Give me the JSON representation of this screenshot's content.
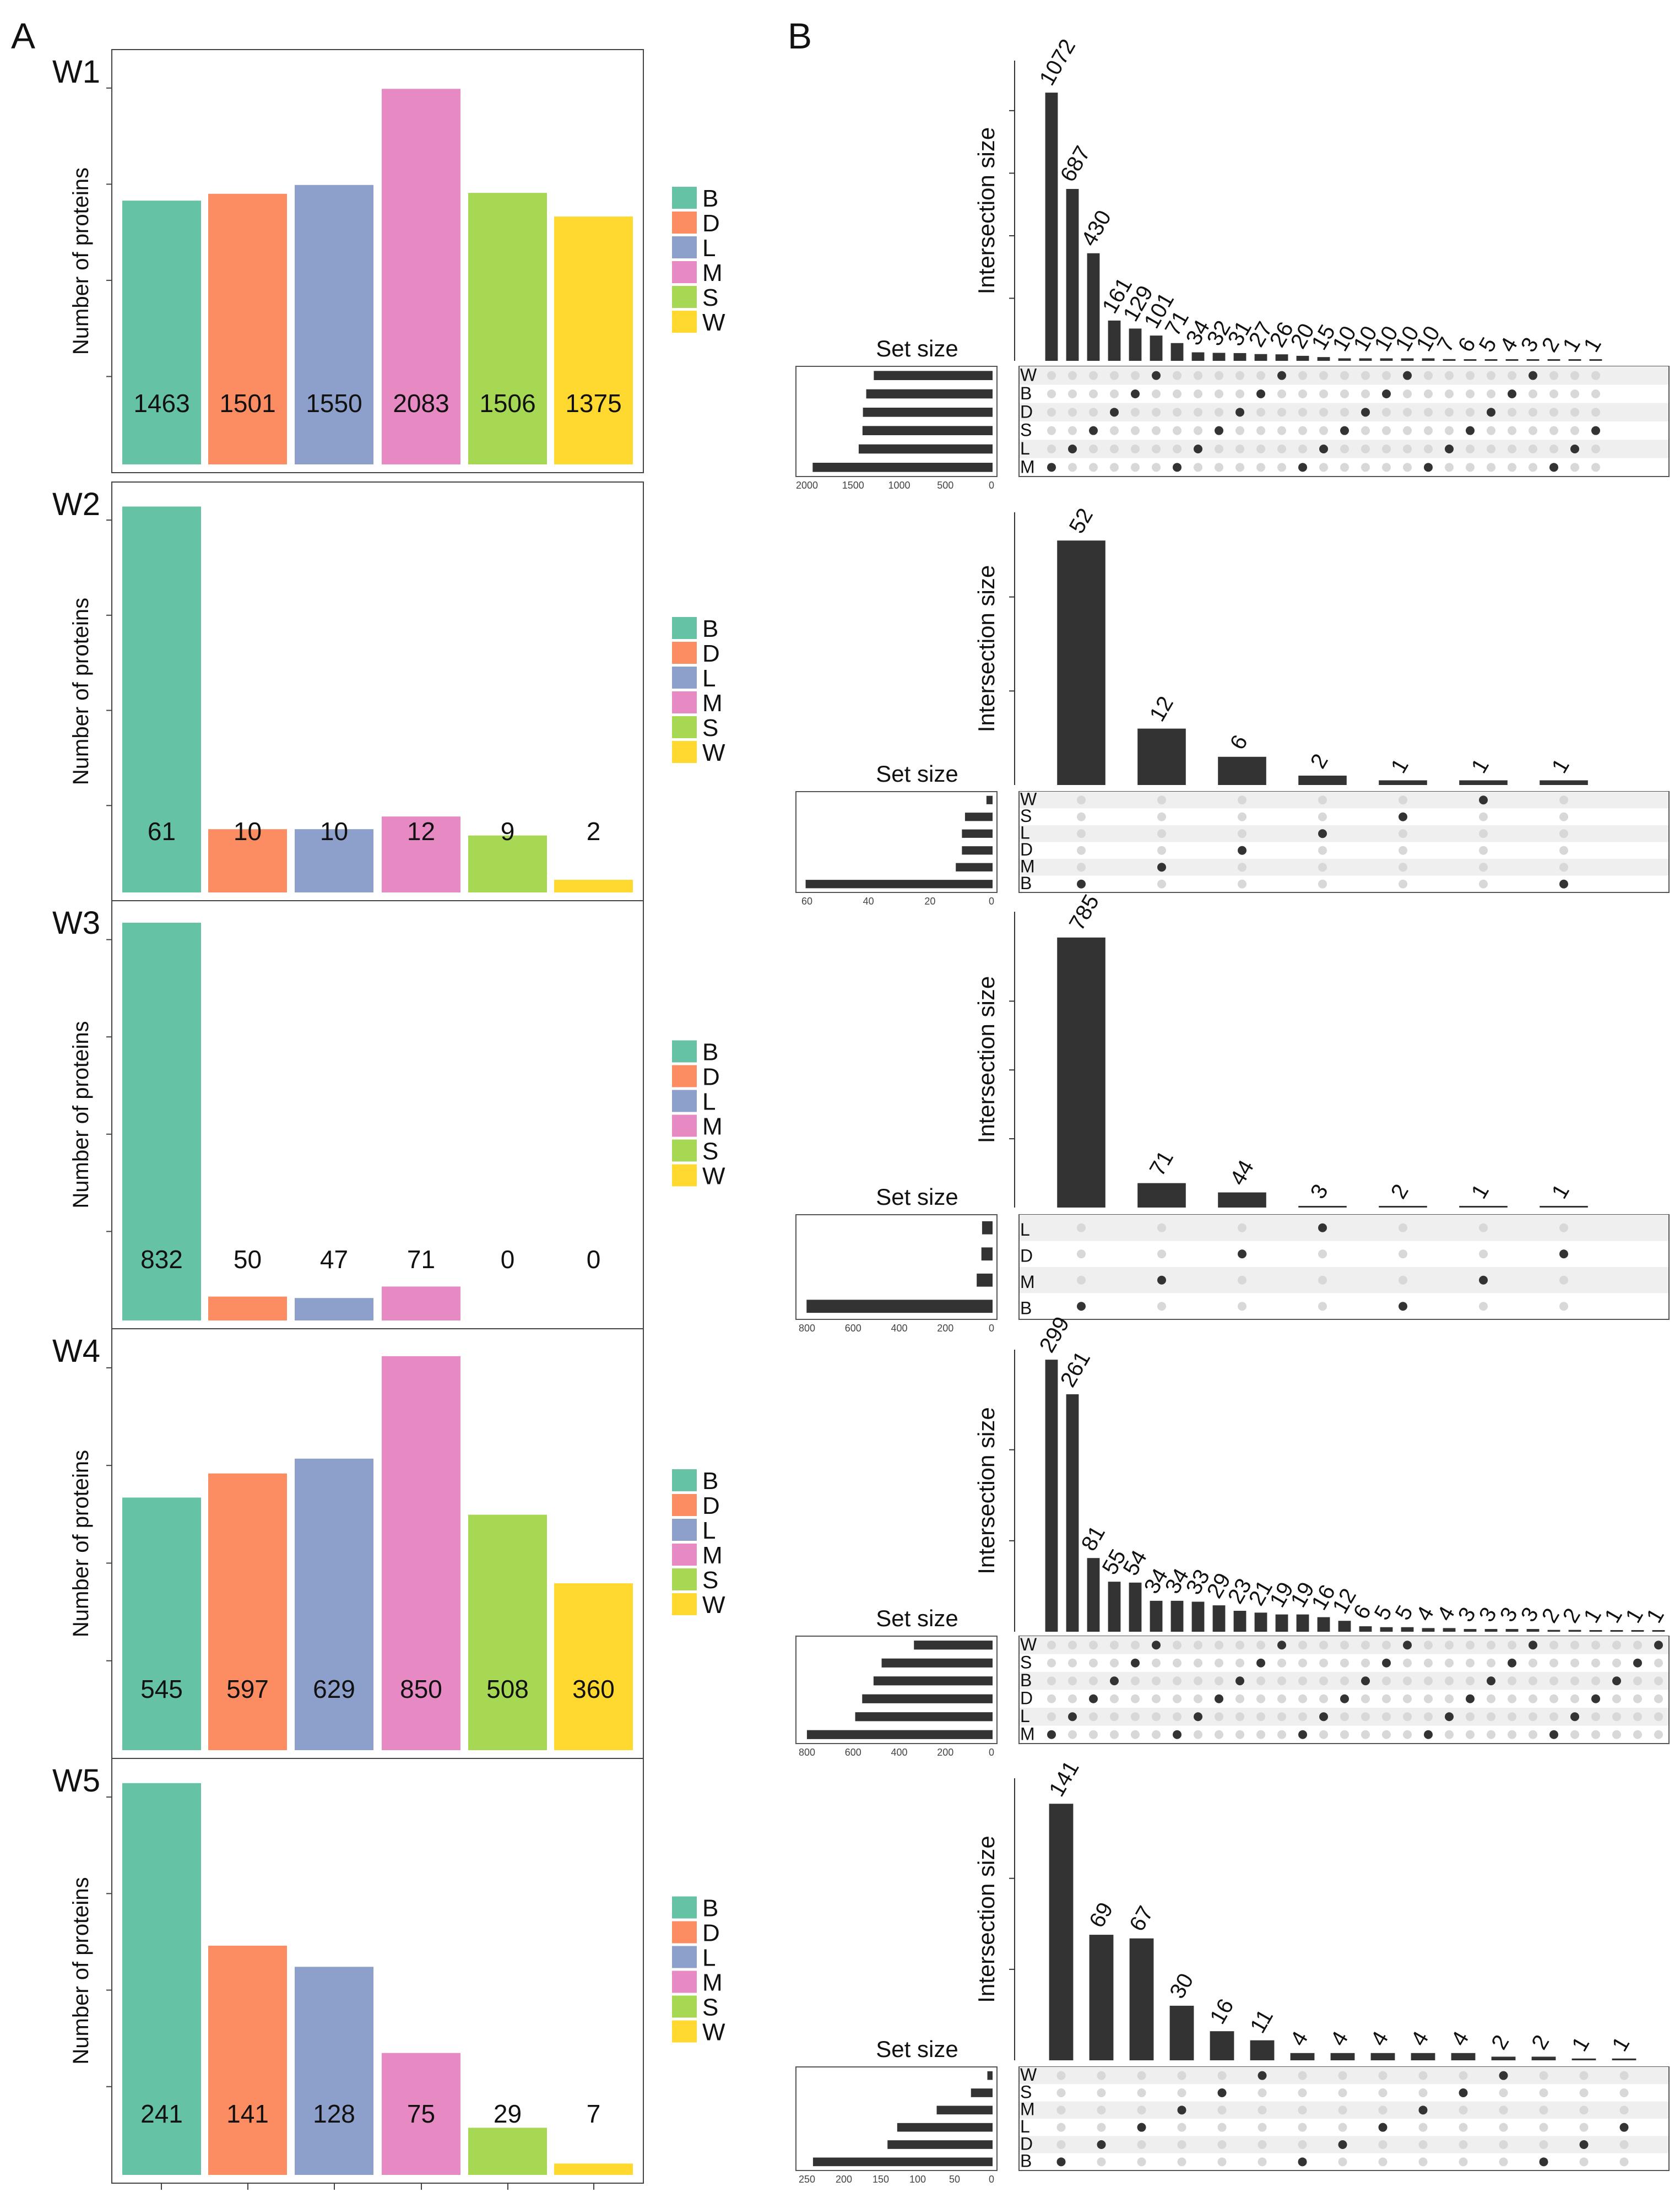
{
  "panel_labels": {
    "A": "A",
    "B": "B"
  },
  "axis_labels": {
    "y_bar": "Number of proteins",
    "upset_y": "Intersection size",
    "set_size": "Set size"
  },
  "colors": {
    "B": "#66C2A5",
    "D": "#FC8D62",
    "L": "#8DA0CB",
    "M": "#E78AC3",
    "S": "#A6D854",
    "W": "#FFD92F",
    "upset_bar": "#333333"
  },
  "chart_data": [
    {
      "type": "bar",
      "title": "W1",
      "categories": [
        "B",
        "D",
        "L",
        "M",
        "S",
        "W"
      ],
      "values": [
        1463,
        1501,
        1550,
        2083,
        1506,
        1375
      ],
      "ylim": [
        0,
        2200
      ],
      "legend": [
        "B",
        "D",
        "L",
        "M",
        "S",
        "W"
      ],
      "ylabel": "Number of proteins"
    },
    {
      "type": "bar",
      "title": "W2",
      "categories": [
        "B",
        "D",
        "L",
        "M",
        "S",
        "W"
      ],
      "values": [
        61,
        10,
        10,
        12,
        9,
        2
      ],
      "ylim": [
        0,
        62
      ],
      "legend": [
        "B",
        "D",
        "L",
        "M",
        "S",
        "W"
      ],
      "ylabel": "Number of proteins"
    },
    {
      "type": "bar",
      "title": "W3",
      "categories": [
        "B",
        "D",
        "L",
        "M",
        "S",
        "W"
      ],
      "values": [
        832,
        50,
        47,
        71,
        0,
        0
      ],
      "ylim": [
        0,
        840
      ],
      "legend": [
        "B",
        "D",
        "L",
        "M",
        "S",
        "W"
      ],
      "ylabel": "Number of proteins"
    },
    {
      "type": "bar",
      "title": "W4",
      "categories": [
        "B",
        "D",
        "L",
        "M",
        "S",
        "W"
      ],
      "values": [
        545,
        597,
        629,
        850,
        508,
        360
      ],
      "ylim": [
        0,
        870
      ],
      "legend": [
        "B",
        "D",
        "L",
        "M",
        "S",
        "W"
      ],
      "ylabel": "Number of proteins"
    },
    {
      "type": "bar",
      "title": "W5",
      "categories": [
        "B",
        "D",
        "L",
        "M",
        "S",
        "W"
      ],
      "values": [
        241,
        141,
        128,
        75,
        29,
        7
      ],
      "ylim": [
        0,
        245
      ],
      "legend": [
        "B",
        "D",
        "L",
        "M",
        "S",
        "W"
      ],
      "ylabel": "Number of proteins"
    },
    {
      "type": "upset",
      "title": "W1",
      "sets": [
        "W",
        "B",
        "D",
        "S",
        "L",
        "M"
      ],
      "set_sizes": [
        1375,
        1463,
        1501,
        1506,
        1550,
        2083
      ],
      "set_size_ticks": [
        "2000",
        "1500",
        "1000",
        "500",
        "0"
      ],
      "set_size_max": 2200,
      "intersections": [
        1072,
        687,
        430,
        161,
        129,
        101,
        71,
        34,
        32,
        31,
        27,
        26,
        20,
        15,
        10,
        10,
        10,
        10,
        10,
        7,
        6,
        5,
        4,
        3,
        2,
        1,
        1
      ],
      "ymax": 1200,
      "yticks": [
        250,
        500,
        750,
        1000
      ],
      "xlabel": "Set size",
      "ylabel": "Intersection size"
    },
    {
      "type": "upset",
      "title": "W2",
      "sets": [
        "W",
        "S",
        "L",
        "D",
        "M",
        "B"
      ],
      "set_sizes": [
        2,
        9,
        10,
        10,
        12,
        61
      ],
      "set_size_ticks": [
        "60",
        "40",
        "20",
        "0"
      ],
      "set_size_max": 62,
      "intersections": [
        52,
        12,
        6,
        2,
        1,
        1,
        1
      ],
      "ymax": 58,
      "yticks": [
        20,
        40
      ],
      "xlabel": "Set size",
      "ylabel": "Intersection size"
    },
    {
      "type": "upset",
      "title": "W3",
      "sets": [
        "L",
        "D",
        "M",
        "B"
      ],
      "set_sizes": [
        47,
        50,
        71,
        832
      ],
      "set_size_ticks": [
        "800",
        "600",
        "400",
        "200",
        "0"
      ],
      "set_size_max": 850,
      "intersections": [
        785,
        71,
        44,
        3,
        2,
        1,
        1
      ],
      "ymax": 860,
      "yticks": [
        200,
        400,
        600
      ],
      "xlabel": "Set size",
      "ylabel": "Intersection size"
    },
    {
      "type": "upset",
      "title": "W4",
      "sets": [
        "W",
        "S",
        "B",
        "D",
        "L",
        "M"
      ],
      "set_sizes": [
        360,
        508,
        545,
        597,
        629,
        850
      ],
      "set_size_ticks": [
        "800",
        "600",
        "400",
        "200",
        "0"
      ],
      "set_size_max": 870,
      "intersections": [
        299,
        261,
        81,
        55,
        54,
        34,
        34,
        33,
        29,
        23,
        21,
        19,
        19,
        16,
        12,
        6,
        5,
        5,
        4,
        4,
        3,
        3,
        3,
        3,
        2,
        2,
        1,
        1,
        1,
        1
      ],
      "ymax": 310,
      "yticks": [
        100,
        200
      ],
      "xlabel": "Set size",
      "ylabel": "Intersection size"
    },
    {
      "type": "upset",
      "title": "W5",
      "sets": [
        "W",
        "S",
        "M",
        "L",
        "D",
        "B"
      ],
      "set_sizes": [
        7,
        29,
        75,
        128,
        141,
        241
      ],
      "set_size_ticks": [
        "250",
        "200",
        "150",
        "100",
        "50",
        "0"
      ],
      "set_size_max": 255,
      "intersections": [
        141,
        69,
        67,
        30,
        16,
        11,
        4,
        4,
        4,
        4,
        4,
        2,
        2,
        1,
        1
      ],
      "ymax": 155,
      "yticks": [
        50,
        100
      ],
      "xlabel": "Set size",
      "ylabel": "Intersection size"
    }
  ]
}
